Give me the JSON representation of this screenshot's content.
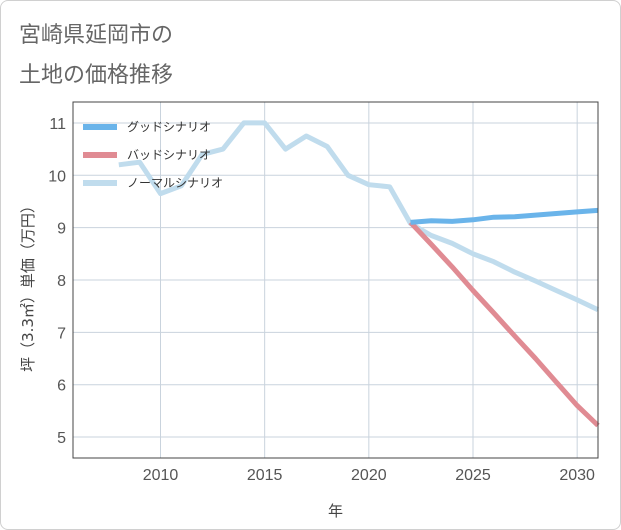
{
  "title_lines": [
    "宮崎県延岡市の",
    "土地の価格推移"
  ],
  "chart_data": {
    "type": "line",
    "title": "宮崎県延岡市の土地の価格推移",
    "xlabel": "年",
    "ylabel": "坪（3.3㎡）単価（万円）",
    "xlim": [
      2005.8,
      2031
    ],
    "ylim": [
      4.6,
      11.4
    ],
    "xticks": [
      2010,
      2015,
      2020,
      2025,
      2030
    ],
    "yticks": [
      5,
      6,
      7,
      8,
      9,
      10,
      11
    ],
    "grid": true,
    "legend_position": "top-left",
    "series": [
      {
        "name": "グッドシナリオ",
        "color": "#6ab4ea",
        "x": [
          2022,
          2023,
          2024,
          2025,
          2026,
          2027,
          2028,
          2029,
          2030,
          2031
        ],
        "values": [
          9.1,
          9.13,
          9.12,
          9.15,
          9.2,
          9.21,
          9.24,
          9.27,
          9.3,
          9.33
        ]
      },
      {
        "name": "バッドシナリオ",
        "color": "#e08b93",
        "x": [
          2022,
          2023,
          2024,
          2025,
          2026,
          2027,
          2028,
          2029,
          2030,
          2031
        ],
        "values": [
          9.1,
          8.68,
          8.25,
          7.8,
          7.37,
          6.93,
          6.5,
          6.05,
          5.6,
          5.22
        ]
      },
      {
        "name": "ノーマルシナリオ",
        "color": "#c0dced",
        "x": [
          2008,
          2009,
          2010,
          2011,
          2012,
          2013,
          2014,
          2015,
          2016,
          2017,
          2018,
          2019,
          2020,
          2021,
          2022,
          2023,
          2024,
          2025,
          2026,
          2027,
          2028,
          2029,
          2030,
          2031
        ],
        "values": [
          10.2,
          10.25,
          9.65,
          9.8,
          10.4,
          10.5,
          11.0,
          11.0,
          10.5,
          10.75,
          10.55,
          10.0,
          9.82,
          9.78,
          9.08,
          8.85,
          8.7,
          8.5,
          8.35,
          8.15,
          7.98,
          7.8,
          7.62,
          7.43
        ]
      }
    ]
  }
}
